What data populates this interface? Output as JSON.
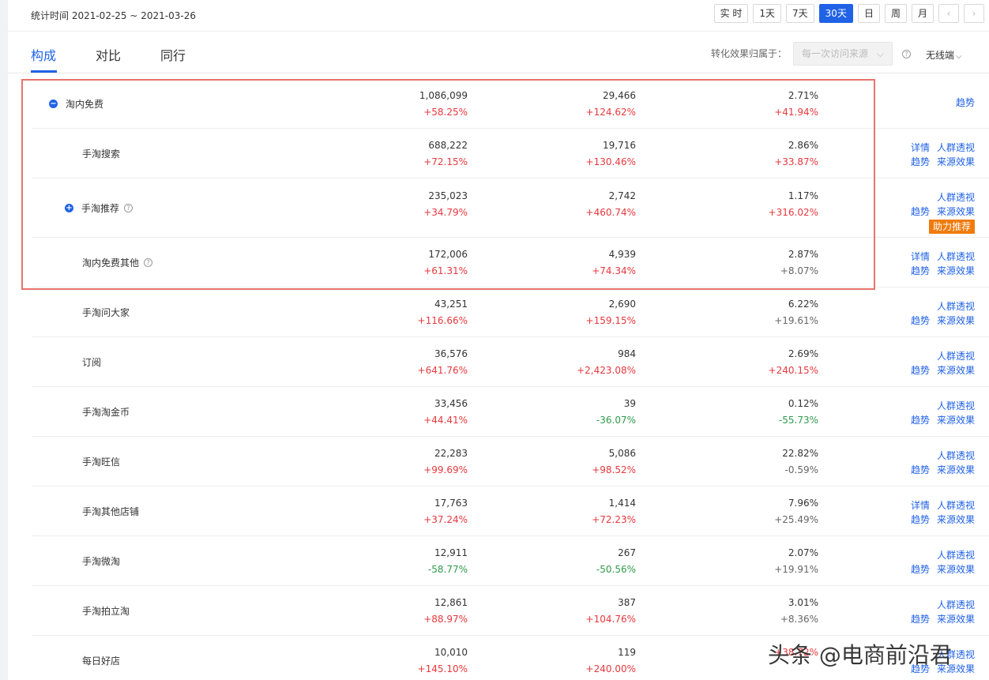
{
  "header": {
    "date_range": "统计时间 2021-02-25 ~ 2021-03-26",
    "periods": [
      "实 时",
      "1天",
      "7天",
      "30天",
      "日",
      "周",
      "月"
    ],
    "active_period": "30天",
    "prev": "‹",
    "next": "›"
  },
  "tabs": {
    "items": [
      "构成",
      "对比",
      "同行"
    ],
    "active": "构成",
    "attr_label": "转化效果归属于：",
    "attr_value": "每一次访问来源",
    "device": "无线端"
  },
  "rows": [
    {
      "name": "淘内免费",
      "level": 0,
      "icon": "minus",
      "v1": "1,086,099",
      "d1": "+58.25%",
      "v2": "29,466",
      "d2": "+124.62%",
      "v3": "2.71%",
      "d3": "+41.94%",
      "d3c": "up",
      "actions": [
        [
          "趋势"
        ]
      ]
    },
    {
      "name": "手淘搜索",
      "level": 1,
      "v1": "688,222",
      "d1": "+72.15%",
      "v2": "19,716",
      "d2": "+130.46%",
      "v3": "2.86%",
      "d3": "+33.87%",
      "d3c": "up",
      "actions": [
        [
          "详情",
          "人群透视"
        ],
        [
          "趋势",
          "来源效果"
        ]
      ]
    },
    {
      "name": "手淘推荐",
      "level": 1,
      "icon": "plus",
      "help": true,
      "v1": "235,023",
      "d1": "+34.79%",
      "v2": "2,742",
      "d2": "+460.74%",
      "v3": "1.17%",
      "d3": "+316.02%",
      "d3c": "up",
      "actions": [
        [
          "人群透视"
        ],
        [
          "趋势",
          "来源效果"
        ]
      ],
      "badge": "助力推荐"
    },
    {
      "name": "淘内免费其他",
      "level": 1,
      "help": true,
      "v1": "172,006",
      "d1": "+61.31%",
      "v2": "4,939",
      "d2": "+74.34%",
      "v3": "2.87%",
      "d3": "+8.07%",
      "d3c": "neutral",
      "actions": [
        [
          "详情",
          "人群透视"
        ],
        [
          "趋势",
          "来源效果"
        ]
      ]
    },
    {
      "name": "手淘问大家",
      "level": 1,
      "v1": "43,251",
      "d1": "+116.66%",
      "v2": "2,690",
      "d2": "+159.15%",
      "v3": "6.22%",
      "d3": "+19.61%",
      "d3c": "neutral",
      "actions": [
        [
          "人群透视"
        ],
        [
          "趋势",
          "来源效果"
        ]
      ]
    },
    {
      "name": "订阅",
      "level": 1,
      "v1": "36,576",
      "d1": "+641.76%",
      "v2": "984",
      "d2": "+2,423.08%",
      "v3": "2.69%",
      "d3": "+240.15%",
      "d3c": "up",
      "actions": [
        [
          "人群透视"
        ],
        [
          "趋势",
          "来源效果"
        ]
      ]
    },
    {
      "name": "手淘淘金币",
      "level": 1,
      "v1": "33,456",
      "d1": "+44.41%",
      "v2": "39",
      "d2": "-36.07%",
      "d2c": "down",
      "v3": "0.12%",
      "d3": "-55.73%",
      "d3c": "down",
      "actions": [
        [
          "人群透视"
        ],
        [
          "趋势",
          "来源效果"
        ]
      ]
    },
    {
      "name": "手淘旺信",
      "level": 1,
      "v1": "22,283",
      "d1": "+99.69%",
      "v2": "5,086",
      "d2": "+98.52%",
      "v3": "22.82%",
      "d3": "-0.59%",
      "d3c": "neutral",
      "actions": [
        [
          "人群透视"
        ],
        [
          "趋势",
          "来源效果"
        ]
      ]
    },
    {
      "name": "手淘其他店铺",
      "level": 1,
      "v1": "17,763",
      "d1": "+37.24%",
      "v2": "1,414",
      "d2": "+72.23%",
      "v3": "7.96%",
      "d3": "+25.49%",
      "d3c": "neutral",
      "actions": [
        [
          "详情",
          "人群透视"
        ],
        [
          "趋势",
          "来源效果"
        ]
      ]
    },
    {
      "name": "手淘微淘",
      "level": 1,
      "v1": "12,911",
      "d1": "-58.77%",
      "d1c": "down",
      "v2": "267",
      "d2": "-50.56%",
      "d2c": "down",
      "v3": "2.07%",
      "d3": "+19.91%",
      "d3c": "neutral",
      "actions": [
        [
          "人群透视"
        ],
        [
          "趋势",
          "来源效果"
        ]
      ]
    },
    {
      "name": "手淘拍立淘",
      "level": 1,
      "v1": "12,861",
      "d1": "+88.97%",
      "v2": "387",
      "d2": "+104.76%",
      "v3": "3.01%",
      "d3": "+8.36%",
      "d3c": "neutral",
      "actions": [
        [
          "人群透视"
        ],
        [
          "趋势",
          "来源效果"
        ]
      ]
    },
    {
      "name": "每日好店",
      "level": 1,
      "v1": "10,010",
      "d1": "+145.10%",
      "v2": "119",
      "d2": "+240.00%",
      "v3": "",
      "d3": "+38.72%",
      "d3c": "up",
      "actions": [
        [
          "人群透视"
        ],
        [
          "趋势",
          "来源效果"
        ]
      ]
    }
  ],
  "watermark": "头条 @电商前沿君",
  "colors": {
    "accent": "#2062e6",
    "up": "#e8383d",
    "down": "#2f9b4b",
    "badge": "#f07b0d",
    "highlight": "#e8736b"
  }
}
